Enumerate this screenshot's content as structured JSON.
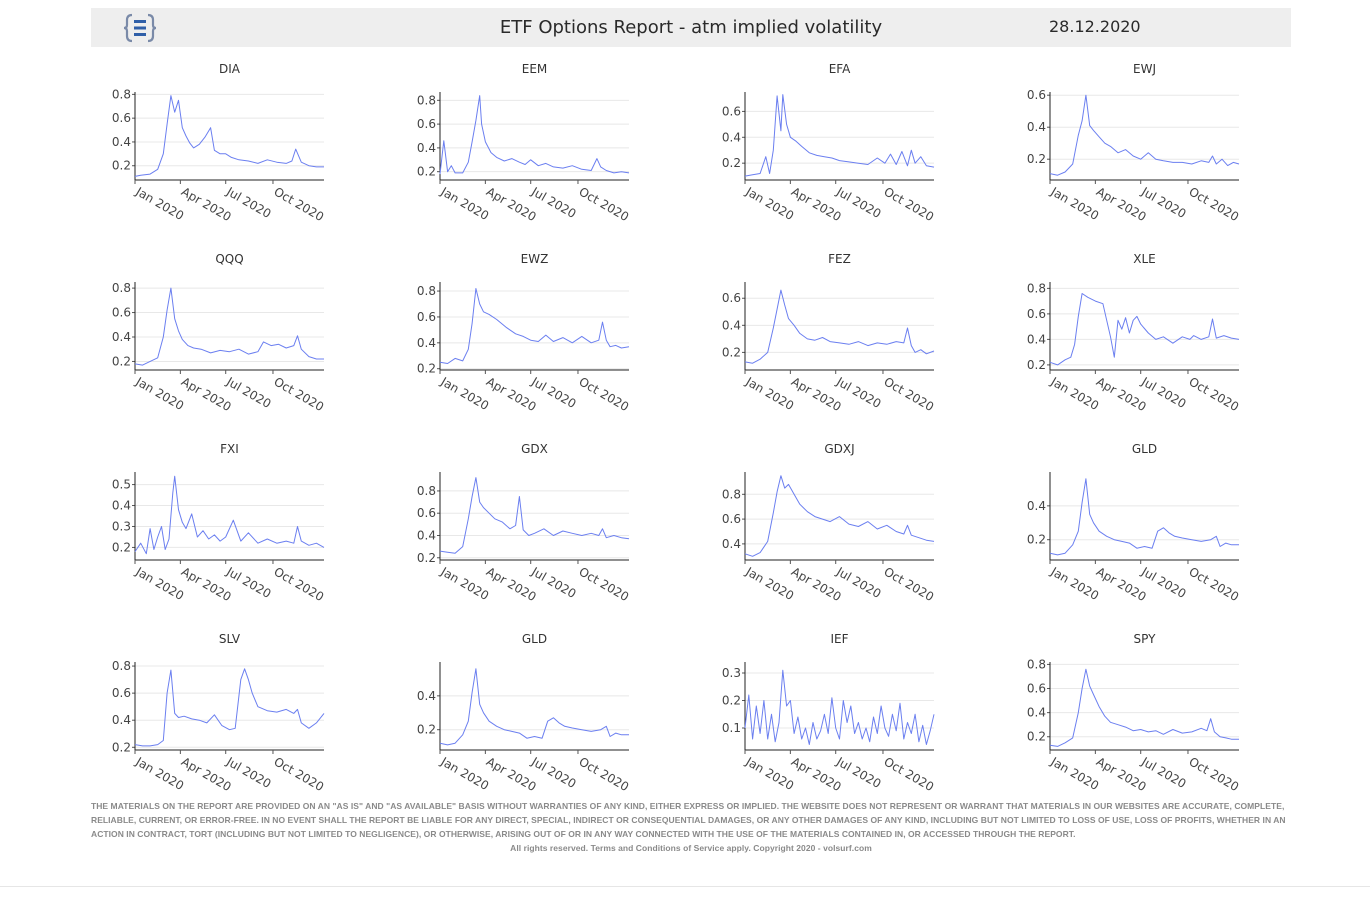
{
  "header": {
    "title": "ETF Options Report - atm implied volatility",
    "date": "28.12.2020",
    "logo_icon": "bracket-document-icon"
  },
  "colors": {
    "line": "#6b7ff0",
    "grid": "#e8e8e8",
    "axis": "#444444",
    "header_bg": "#eeeeee"
  },
  "x_ticks": [
    "Jan 2020",
    "Apr 2020",
    "Jul 2020",
    "Oct 2020"
  ],
  "chart_data": [
    {
      "type": "line",
      "title": "DIA",
      "ylim": [
        0.08,
        0.82
      ],
      "yticks": [
        "0.2",
        "0.4",
        "0.6",
        "0.8"
      ],
      "x": [
        0,
        0.03,
        0.08,
        0.12,
        0.15,
        0.17,
        0.19,
        0.21,
        0.23,
        0.25,
        0.27,
        0.29,
        0.31,
        0.34,
        0.37,
        0.4,
        0.42,
        0.45,
        0.48,
        0.51,
        0.55,
        0.6,
        0.65,
        0.7,
        0.75,
        0.8,
        0.83,
        0.85,
        0.88,
        0.92,
        0.96,
        1.0
      ],
      "values": [
        0.11,
        0.12,
        0.13,
        0.17,
        0.3,
        0.55,
        0.79,
        0.65,
        0.75,
        0.52,
        0.45,
        0.39,
        0.35,
        0.38,
        0.44,
        0.52,
        0.33,
        0.3,
        0.3,
        0.27,
        0.25,
        0.24,
        0.22,
        0.25,
        0.23,
        0.22,
        0.24,
        0.34,
        0.23,
        0.2,
        0.19,
        0.19
      ]
    },
    {
      "type": "line",
      "title": "EEM",
      "ylim": [
        0.13,
        0.87
      ],
      "yticks": [
        "0.2",
        "0.4",
        "0.6",
        "0.8"
      ],
      "x": [
        0,
        0.02,
        0.04,
        0.06,
        0.08,
        0.12,
        0.15,
        0.17,
        0.19,
        0.21,
        0.22,
        0.24,
        0.27,
        0.3,
        0.34,
        0.38,
        0.42,
        0.45,
        0.48,
        0.52,
        0.56,
        0.6,
        0.65,
        0.7,
        0.75,
        0.8,
        0.83,
        0.85,
        0.88,
        0.92,
        0.96,
        1.0
      ],
      "values": [
        0.18,
        0.46,
        0.2,
        0.25,
        0.19,
        0.19,
        0.28,
        0.45,
        0.63,
        0.84,
        0.6,
        0.45,
        0.36,
        0.32,
        0.29,
        0.31,
        0.28,
        0.26,
        0.3,
        0.25,
        0.27,
        0.24,
        0.23,
        0.25,
        0.22,
        0.21,
        0.31,
        0.24,
        0.21,
        0.19,
        0.2,
        0.19
      ]
    },
    {
      "type": "line",
      "title": "EFA",
      "ylim": [
        0.07,
        0.75
      ],
      "yticks": [
        "0.2",
        "0.4",
        "0.6"
      ],
      "x": [
        0,
        0.04,
        0.08,
        0.11,
        0.13,
        0.15,
        0.17,
        0.19,
        0.2,
        0.22,
        0.24,
        0.27,
        0.3,
        0.34,
        0.38,
        0.42,
        0.46,
        0.5,
        0.55,
        0.6,
        0.65,
        0.7,
        0.74,
        0.77,
        0.8,
        0.83,
        0.86,
        0.88,
        0.9,
        0.93,
        0.96,
        1.0
      ],
      "values": [
        0.1,
        0.11,
        0.12,
        0.25,
        0.12,
        0.3,
        0.72,
        0.45,
        0.73,
        0.5,
        0.4,
        0.37,
        0.33,
        0.28,
        0.26,
        0.25,
        0.24,
        0.22,
        0.21,
        0.2,
        0.19,
        0.24,
        0.2,
        0.27,
        0.19,
        0.29,
        0.18,
        0.3,
        0.2,
        0.25,
        0.18,
        0.17
      ]
    },
    {
      "type": "line",
      "title": "EWJ",
      "ylim": [
        0.07,
        0.62
      ],
      "yticks": [
        "0.2",
        "0.4",
        "0.6"
      ],
      "x": [
        0,
        0.04,
        0.08,
        0.12,
        0.15,
        0.17,
        0.19,
        0.21,
        0.23,
        0.26,
        0.29,
        0.32,
        0.36,
        0.4,
        0.44,
        0.48,
        0.52,
        0.56,
        0.6,
        0.65,
        0.7,
        0.75,
        0.8,
        0.84,
        0.86,
        0.88,
        0.91,
        0.94,
        0.97,
        1.0
      ],
      "values": [
        0.11,
        0.1,
        0.12,
        0.17,
        0.35,
        0.44,
        0.6,
        0.41,
        0.38,
        0.34,
        0.3,
        0.28,
        0.24,
        0.26,
        0.22,
        0.2,
        0.24,
        0.2,
        0.19,
        0.18,
        0.18,
        0.17,
        0.19,
        0.18,
        0.22,
        0.17,
        0.2,
        0.16,
        0.18,
        0.17
      ]
    },
    {
      "type": "line",
      "title": "QQQ",
      "ylim": [
        0.13,
        0.85
      ],
      "yticks": [
        "0.2",
        "0.4",
        "0.6",
        "0.8"
      ],
      "x": [
        0,
        0.04,
        0.08,
        0.12,
        0.15,
        0.17,
        0.19,
        0.21,
        0.23,
        0.25,
        0.28,
        0.31,
        0.35,
        0.4,
        0.45,
        0.5,
        0.55,
        0.6,
        0.65,
        0.68,
        0.72,
        0.76,
        0.8,
        0.84,
        0.86,
        0.88,
        0.92,
        0.96,
        1.0
      ],
      "values": [
        0.18,
        0.17,
        0.2,
        0.23,
        0.4,
        0.62,
        0.8,
        0.55,
        0.45,
        0.38,
        0.33,
        0.31,
        0.3,
        0.27,
        0.29,
        0.28,
        0.3,
        0.26,
        0.28,
        0.36,
        0.33,
        0.34,
        0.31,
        0.33,
        0.41,
        0.3,
        0.24,
        0.22,
        0.22
      ]
    },
    {
      "type": "line",
      "title": "EWZ",
      "ylim": [
        0.19,
        0.87
      ],
      "yticks": [
        "0.2",
        "0.4",
        "0.6",
        "0.8"
      ],
      "x": [
        0,
        0.04,
        0.08,
        0.12,
        0.15,
        0.17,
        0.19,
        0.21,
        0.23,
        0.26,
        0.3,
        0.35,
        0.4,
        0.44,
        0.48,
        0.52,
        0.56,
        0.6,
        0.65,
        0.7,
        0.75,
        0.8,
        0.84,
        0.86,
        0.88,
        0.9,
        0.93,
        0.96,
        1.0
      ],
      "values": [
        0.25,
        0.24,
        0.28,
        0.26,
        0.35,
        0.55,
        0.82,
        0.7,
        0.64,
        0.62,
        0.58,
        0.52,
        0.47,
        0.45,
        0.42,
        0.41,
        0.46,
        0.41,
        0.44,
        0.4,
        0.45,
        0.4,
        0.42,
        0.56,
        0.42,
        0.37,
        0.38,
        0.36,
        0.37
      ]
    },
    {
      "type": "line",
      "title": "FEZ",
      "ylim": [
        0.07,
        0.72
      ],
      "yticks": [
        "0.2",
        "0.4",
        "0.6"
      ],
      "x": [
        0,
        0.04,
        0.08,
        0.12,
        0.15,
        0.17,
        0.19,
        0.21,
        0.23,
        0.26,
        0.29,
        0.33,
        0.37,
        0.41,
        0.45,
        0.5,
        0.55,
        0.6,
        0.65,
        0.7,
        0.75,
        0.8,
        0.84,
        0.86,
        0.88,
        0.9,
        0.93,
        0.96,
        1.0
      ],
      "values": [
        0.13,
        0.12,
        0.15,
        0.2,
        0.38,
        0.52,
        0.66,
        0.55,
        0.45,
        0.4,
        0.34,
        0.3,
        0.29,
        0.31,
        0.28,
        0.27,
        0.26,
        0.28,
        0.25,
        0.27,
        0.26,
        0.28,
        0.27,
        0.38,
        0.25,
        0.2,
        0.22,
        0.19,
        0.21
      ]
    },
    {
      "type": "line",
      "title": "XLE",
      "ylim": [
        0.16,
        0.85
      ],
      "yticks": [
        "0.2",
        "0.4",
        "0.6",
        "0.8"
      ],
      "x": [
        0,
        0.04,
        0.08,
        0.11,
        0.13,
        0.15,
        0.17,
        0.2,
        0.24,
        0.28,
        0.3,
        0.32,
        0.34,
        0.36,
        0.38,
        0.4,
        0.42,
        0.44,
        0.46,
        0.48,
        0.52,
        0.56,
        0.6,
        0.65,
        0.7,
        0.74,
        0.76,
        0.8,
        0.84,
        0.86,
        0.88,
        0.92,
        0.96,
        1.0
      ],
      "values": [
        0.22,
        0.2,
        0.24,
        0.26,
        0.36,
        0.58,
        0.76,
        0.73,
        0.7,
        0.68,
        0.55,
        0.42,
        0.26,
        0.55,
        0.48,
        0.57,
        0.45,
        0.55,
        0.58,
        0.52,
        0.45,
        0.4,
        0.42,
        0.37,
        0.42,
        0.4,
        0.43,
        0.4,
        0.42,
        0.56,
        0.41,
        0.43,
        0.41,
        0.4
      ]
    },
    {
      "type": "line",
      "title": "FXI",
      "ylim": [
        0.14,
        0.56
      ],
      "yticks": [
        "0.2",
        "0.3",
        "0.4",
        "0.5"
      ],
      "x": [
        0,
        0.03,
        0.06,
        0.08,
        0.1,
        0.12,
        0.14,
        0.16,
        0.18,
        0.2,
        0.21,
        0.23,
        0.25,
        0.27,
        0.3,
        0.33,
        0.36,
        0.39,
        0.42,
        0.45,
        0.48,
        0.52,
        0.56,
        0.6,
        0.65,
        0.7,
        0.75,
        0.8,
        0.84,
        0.86,
        0.88,
        0.92,
        0.96,
        1.0
      ],
      "values": [
        0.18,
        0.22,
        0.17,
        0.29,
        0.19,
        0.25,
        0.3,
        0.19,
        0.24,
        0.46,
        0.54,
        0.38,
        0.32,
        0.29,
        0.36,
        0.25,
        0.28,
        0.24,
        0.26,
        0.23,
        0.25,
        0.33,
        0.23,
        0.27,
        0.22,
        0.24,
        0.22,
        0.23,
        0.22,
        0.3,
        0.23,
        0.21,
        0.22,
        0.2
      ]
    },
    {
      "type": "line",
      "title": "GDX",
      "ylim": [
        0.18,
        0.97
      ],
      "yticks": [
        "0.2",
        "0.4",
        "0.6",
        "0.8"
      ],
      "x": [
        0,
        0.04,
        0.08,
        0.12,
        0.15,
        0.17,
        0.19,
        0.21,
        0.23,
        0.26,
        0.29,
        0.33,
        0.37,
        0.4,
        0.42,
        0.44,
        0.47,
        0.5,
        0.55,
        0.6,
        0.65,
        0.7,
        0.75,
        0.8,
        0.84,
        0.86,
        0.88,
        0.92,
        0.96,
        1.0
      ],
      "values": [
        0.26,
        0.25,
        0.24,
        0.3,
        0.55,
        0.75,
        0.92,
        0.7,
        0.65,
        0.6,
        0.55,
        0.52,
        0.46,
        0.49,
        0.75,
        0.45,
        0.4,
        0.42,
        0.46,
        0.4,
        0.44,
        0.42,
        0.4,
        0.42,
        0.4,
        0.46,
        0.38,
        0.4,
        0.38,
        0.37
      ]
    },
    {
      "type": "line",
      "title": "GDXJ",
      "ylim": [
        0.27,
        0.98
      ],
      "yticks": [
        "0.4",
        "0.6",
        "0.8"
      ],
      "x": [
        0,
        0.04,
        0.08,
        0.12,
        0.15,
        0.17,
        0.19,
        0.21,
        0.23,
        0.26,
        0.29,
        0.33,
        0.37,
        0.41,
        0.45,
        0.5,
        0.55,
        0.6,
        0.65,
        0.7,
        0.75,
        0.8,
        0.84,
        0.86,
        0.88,
        0.92,
        0.96,
        1.0
      ],
      "values": [
        0.32,
        0.3,
        0.33,
        0.42,
        0.65,
        0.82,
        0.95,
        0.85,
        0.88,
        0.8,
        0.72,
        0.66,
        0.62,
        0.6,
        0.58,
        0.62,
        0.56,
        0.54,
        0.58,
        0.52,
        0.55,
        0.5,
        0.48,
        0.55,
        0.47,
        0.45,
        0.43,
        0.42
      ]
    },
    {
      "type": "line",
      "title": "GLD",
      "ylim": [
        0.08,
        0.6
      ],
      "yticks": [
        "0.2",
        "0.4"
      ],
      "x": [
        0,
        0.04,
        0.08,
        0.12,
        0.15,
        0.17,
        0.19,
        0.21,
        0.23,
        0.26,
        0.3,
        0.34,
        0.38,
        0.42,
        0.46,
        0.5,
        0.54,
        0.57,
        0.6,
        0.63,
        0.66,
        0.7,
        0.75,
        0.8,
        0.85,
        0.88,
        0.9,
        0.93,
        0.96,
        1.0
      ],
      "values": [
        0.12,
        0.11,
        0.12,
        0.17,
        0.25,
        0.42,
        0.56,
        0.35,
        0.3,
        0.25,
        0.22,
        0.2,
        0.19,
        0.18,
        0.15,
        0.16,
        0.15,
        0.25,
        0.27,
        0.24,
        0.22,
        0.21,
        0.2,
        0.19,
        0.2,
        0.22,
        0.16,
        0.18,
        0.17,
        0.17
      ]
    },
    {
      "type": "line",
      "title": "SLV",
      "ylim": [
        0.18,
        0.83
      ],
      "yticks": [
        "0.2",
        "0.4",
        "0.6",
        "0.8"
      ],
      "x": [
        0,
        0.04,
        0.08,
        0.12,
        0.15,
        0.17,
        0.19,
        0.21,
        0.23,
        0.26,
        0.3,
        0.34,
        0.38,
        0.42,
        0.46,
        0.5,
        0.53,
        0.56,
        0.58,
        0.6,
        0.62,
        0.65,
        0.7,
        0.75,
        0.8,
        0.84,
        0.86,
        0.88,
        0.92,
        0.96,
        1.0
      ],
      "values": [
        0.22,
        0.21,
        0.21,
        0.22,
        0.25,
        0.6,
        0.77,
        0.45,
        0.42,
        0.43,
        0.41,
        0.4,
        0.38,
        0.44,
        0.36,
        0.33,
        0.34,
        0.7,
        0.78,
        0.7,
        0.6,
        0.5,
        0.47,
        0.46,
        0.48,
        0.45,
        0.48,
        0.38,
        0.34,
        0.38,
        0.45
      ]
    },
    {
      "type": "line",
      "title": "GLD",
      "ylim": [
        0.08,
        0.6
      ],
      "yticks": [
        "0.2",
        "0.4"
      ],
      "x": [
        0,
        0.04,
        0.08,
        0.12,
        0.15,
        0.17,
        0.19,
        0.21,
        0.23,
        0.26,
        0.3,
        0.34,
        0.38,
        0.42,
        0.46,
        0.5,
        0.54,
        0.57,
        0.6,
        0.63,
        0.66,
        0.7,
        0.75,
        0.8,
        0.85,
        0.88,
        0.9,
        0.93,
        0.96,
        1.0
      ],
      "values": [
        0.12,
        0.11,
        0.12,
        0.17,
        0.25,
        0.42,
        0.56,
        0.35,
        0.3,
        0.25,
        0.22,
        0.2,
        0.19,
        0.18,
        0.15,
        0.16,
        0.15,
        0.25,
        0.27,
        0.24,
        0.22,
        0.21,
        0.2,
        0.19,
        0.2,
        0.22,
        0.16,
        0.18,
        0.17,
        0.17
      ]
    },
    {
      "type": "line",
      "title": "IEF",
      "ylim": [
        0.02,
        0.34
      ],
      "yticks": [
        "0.1",
        "0.2",
        "0.3"
      ],
      "x": [
        0,
        0.02,
        0.04,
        0.06,
        0.08,
        0.1,
        0.12,
        0.14,
        0.16,
        0.18,
        0.2,
        0.22,
        0.24,
        0.26,
        0.28,
        0.3,
        0.32,
        0.34,
        0.36,
        0.38,
        0.4,
        0.42,
        0.44,
        0.46,
        0.48,
        0.5,
        0.52,
        0.54,
        0.56,
        0.58,
        0.6,
        0.62,
        0.64,
        0.66,
        0.68,
        0.7,
        0.72,
        0.74,
        0.76,
        0.78,
        0.8,
        0.82,
        0.84,
        0.86,
        0.88,
        0.9,
        0.92,
        0.94,
        0.96,
        0.98,
        1.0
      ],
      "values": [
        0.1,
        0.22,
        0.06,
        0.18,
        0.08,
        0.2,
        0.06,
        0.15,
        0.05,
        0.12,
        0.31,
        0.18,
        0.2,
        0.08,
        0.14,
        0.06,
        0.1,
        0.04,
        0.12,
        0.06,
        0.09,
        0.15,
        0.08,
        0.21,
        0.1,
        0.06,
        0.2,
        0.12,
        0.18,
        0.08,
        0.12,
        0.06,
        0.1,
        0.05,
        0.14,
        0.08,
        0.18,
        0.1,
        0.07,
        0.15,
        0.09,
        0.19,
        0.06,
        0.12,
        0.08,
        0.15,
        0.05,
        0.11,
        0.04,
        0.09,
        0.15
      ]
    },
    {
      "type": "line",
      "title": "SPY",
      "ylim": [
        0.09,
        0.82
      ],
      "yticks": [
        "0.2",
        "0.4",
        "0.6",
        "0.8"
      ],
      "x": [
        0,
        0.04,
        0.08,
        0.12,
        0.15,
        0.17,
        0.19,
        0.21,
        0.23,
        0.26,
        0.29,
        0.32,
        0.36,
        0.4,
        0.44,
        0.48,
        0.52,
        0.56,
        0.6,
        0.65,
        0.7,
        0.75,
        0.8,
        0.83,
        0.85,
        0.87,
        0.9,
        0.93,
        0.96,
        1.0
      ],
      "values": [
        0.13,
        0.12,
        0.15,
        0.19,
        0.4,
        0.6,
        0.76,
        0.62,
        0.55,
        0.45,
        0.37,
        0.32,
        0.3,
        0.28,
        0.25,
        0.26,
        0.24,
        0.25,
        0.22,
        0.26,
        0.23,
        0.24,
        0.27,
        0.25,
        0.35,
        0.24,
        0.2,
        0.19,
        0.18,
        0.18
      ]
    }
  ],
  "footer": {
    "disclaimer": "THE MATERIALS ON THE REPORT ARE PROVIDED ON AN \"AS IS\" AND \"AS AVAILABLE\" BASIS WITHOUT WARRANTIES OF ANY KIND, EITHER EXPRESS OR IMPLIED. THE WEBSITE DOES NOT REPRESENT OR WARRANT THAT MATERIALS IN OUR WEBSITES ARE ACCURATE, COMPLETE, RELIABLE, CURRENT, OR ERROR-FREE. IN NO EVENT SHALL THE REPORT BE LIABLE FOR ANY DIRECT, SPECIAL, INDIRECT OR CONSEQUENTIAL DAMAGES, OR ANY OTHER DAMAGES OF ANY KIND, INCLUDING BUT NOT LIMITED TO LOSS OF USE, LOSS OF PROFITS, WHETHER IN AN ACTION IN CONTRACT, TORT (INCLUDING BUT NOT LIMITED TO NEGLIGENCE), OR OTHERWISE, ARISING OUT OF OR IN ANY WAY CONNECTED WITH THE USE OF THE MATERIALS CONTAINED IN, OR ACCESSED THROUGH THE REPORT.",
    "copyright": "All rights reserved. Terms and Conditions of Service apply. Copyright 2020 - volsurf.com"
  }
}
